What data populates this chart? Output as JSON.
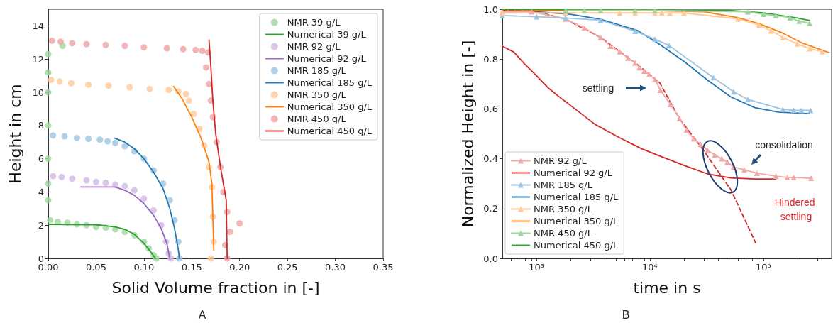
{
  "chart_data": [
    {
      "type": "scatter",
      "xlabel": "Solid Volume fraction in [-]",
      "ylabel": "Height in cm",
      "xlim": [
        0,
        0.35
      ],
      "ylim": [
        0,
        15
      ],
      "xticks": [
        {
          "value": 0,
          "label": "0.00"
        },
        {
          "value": 0.05,
          "label": "0.05"
        },
        {
          "value": 0.1,
          "label": "0.10"
        },
        {
          "value": 0.15,
          "label": "0.15"
        },
        {
          "value": 0.2,
          "label": "0.20"
        },
        {
          "value": 0.25,
          "label": "0.25"
        },
        {
          "value": 0.3,
          "label": "0.30"
        },
        {
          "value": 0.35,
          "label": "0.35"
        }
      ],
      "yticks": [
        0,
        2,
        4,
        6,
        8,
        10,
        12,
        14
      ],
      "legend": "top right",
      "annotations": [
        "A"
      ],
      "series": [
        {
          "name": "NMR 39 g/L",
          "marker": "circle",
          "color": "#9fd69f",
          "x": [
            0,
            0,
            0,
            0,
            0,
            0,
            0,
            0.015,
            0.002,
            0.01,
            0.02,
            0.03,
            0.04,
            0.05,
            0.06,
            0.07,
            0.08,
            0.09,
            0.1,
            0.105,
            0.11,
            0.113
          ],
          "values": [
            3.5,
            4.5,
            6,
            8,
            10,
            11.2,
            12.3,
            12.8,
            2.3,
            2.2,
            2.15,
            2.05,
            2,
            1.9,
            1.85,
            1.75,
            1.6,
            1.4,
            1,
            0.6,
            0.2,
            0
          ]
        },
        {
          "name": "Numerical 39 g/L",
          "type": "line",
          "marker": "none",
          "color": "#2ca02c",
          "x": [
            0,
            0.05,
            0.07,
            0.08,
            0.09,
            0.1,
            0.107,
            0.112
          ],
          "values": [
            2.05,
            2.03,
            1.9,
            1.75,
            1.45,
            0.9,
            0.4,
            0
          ]
        },
        {
          "name": "NMR 92 g/L",
          "marker": "circle",
          "color": "#cfb8e4",
          "x": [
            0.005,
            0.014,
            0.025,
            0.04,
            0.05,
            0.06,
            0.07,
            0.08,
            0.09,
            0.1,
            0.11,
            0.118,
            0.123,
            0.126,
            0.128
          ],
          "values": [
            4.95,
            4.9,
            4.8,
            4.7,
            4.6,
            4.55,
            4.45,
            4.35,
            4.1,
            3.6,
            2.9,
            2,
            1,
            0.3,
            0
          ]
        },
        {
          "name": "Numerical 92 g/L",
          "type": "line",
          "marker": "none",
          "color": "#9467bd",
          "x": [
            0.034,
            0.07,
            0.08,
            0.09,
            0.1,
            0.11,
            0.118,
            0.124,
            0.127
          ],
          "values": [
            4.3,
            4.3,
            4.1,
            3.8,
            3.3,
            2.6,
            1.8,
            0.9,
            0
          ]
        },
        {
          "name": "NMR 185 g/L",
          "marker": "circle",
          "color": "#9cc4e2",
          "x": [
            0.005,
            0.017,
            0.03,
            0.042,
            0.054,
            0.062,
            0.07,
            0.08,
            0.09,
            0.1,
            0.11,
            0.12,
            0.127,
            0.132,
            0.136,
            0.137
          ],
          "values": [
            7.4,
            7.35,
            7.25,
            7.2,
            7.15,
            7.05,
            6.95,
            6.75,
            6.45,
            6,
            5.3,
            4.5,
            3.5,
            2.3,
            1,
            0
          ]
        },
        {
          "name": "Numerical 185 g/L",
          "type": "line",
          "marker": "none",
          "color": "#1f77b4",
          "x": [
            0.069,
            0.08,
            0.09,
            0.1,
            0.11,
            0.12,
            0.127,
            0.132,
            0.136,
            0.137
          ],
          "values": [
            7.25,
            7,
            6.6,
            6,
            5.2,
            4.2,
            3,
            1.8,
            0.5,
            0
          ]
        },
        {
          "name": "NMR 350 g/L",
          "marker": "circle",
          "color": "#ffc999",
          "x": [
            0.003,
            0.012,
            0.024,
            0.042,
            0.063,
            0.085,
            0.106,
            0.126,
            0.136,
            0.144,
            0.147,
            0.152,
            0.158,
            0.163,
            0.168,
            0.171,
            0.172,
            0.173,
            0.17
          ],
          "values": [
            10.75,
            10.65,
            10.55,
            10.45,
            10.4,
            10.3,
            10.2,
            10.15,
            10.05,
            9.9,
            9.5,
            8.7,
            7.8,
            6.8,
            5.5,
            4.3,
            2.5,
            1,
            0
          ]
        },
        {
          "name": "Numerical 350 g/L",
          "type": "line",
          "marker": "none",
          "color": "#ff7f0e",
          "x": [
            0.131,
            0.14,
            0.15,
            0.16,
            0.168,
            0.171,
            0.172,
            0.173
          ],
          "values": [
            10.35,
            9.6,
            8.5,
            7.2,
            5.8,
            4.5,
            2.5,
            0.5
          ]
        },
        {
          "name": "NMR 450 g/L",
          "marker": "circle",
          "color": "#efa3a3",
          "x": [
            0.004,
            0.013,
            0.025,
            0.04,
            0.06,
            0.08,
            0.1,
            0.124,
            0.141,
            0.154,
            0.161,
            0.167,
            0.165,
            0.168,
            0.17,
            0.172,
            0.176,
            0.18,
            0.183,
            0.187,
            0.2,
            0.19,
            0.185,
            0.187
          ],
          "values": [
            13.1,
            13.05,
            12.95,
            12.9,
            12.85,
            12.8,
            12.7,
            12.65,
            12.6,
            12.55,
            12.5,
            12.4,
            11.5,
            10.5,
            9.5,
            8.5,
            7,
            5.5,
            4,
            2.8,
            2.1,
            1.6,
            0.8,
            0
          ]
        },
        {
          "name": "Numerical 450 g/L",
          "type": "line",
          "marker": "none",
          "color": "#d62728",
          "x": [
            0.168,
            0.17,
            0.172,
            0.175,
            0.18,
            0.186,
            0.187
          ],
          "values": [
            13.15,
            11.5,
            9.5,
            7.5,
            5.5,
            3.5,
            0
          ]
        }
      ]
    },
    {
      "type": "line",
      "xlabel": "time in s",
      "ylabel": "Normalized Height in [-]",
      "log": "x",
      "xlim": [
        500,
        400000
      ],
      "ylim": [
        0,
        1
      ],
      "xticks": [
        {
          "value": 600,
          "label": null
        },
        {
          "value": 700,
          "label": null
        },
        {
          "value": 800,
          "label": null
        },
        {
          "value": 900,
          "label": null
        },
        {
          "value": 1000,
          "label": "10³"
        },
        {
          "value": 2000,
          "label": null
        },
        {
          "value": 3000,
          "label": null
        },
        {
          "value": 4000,
          "label": null
        },
        {
          "value": 5000,
          "label": null
        },
        {
          "value": 6000,
          "label": null
        },
        {
          "value": 7000,
          "label": null
        },
        {
          "value": 8000,
          "label": null
        },
        {
          "value": 9000,
          "label": null
        },
        {
          "value": 10000,
          "label": "10⁴"
        },
        {
          "value": 20000,
          "label": null
        },
        {
          "value": 30000,
          "label": null
        },
        {
          "value": 40000,
          "label": null
        },
        {
          "value": 50000,
          "label": null
        },
        {
          "value": 60000,
          "label": null
        },
        {
          "value": 70000,
          "label": null
        },
        {
          "value": 80000,
          "label": null
        },
        {
          "value": 90000,
          "label": null
        },
        {
          "value": 100000,
          "label": "10⁵"
        },
        {
          "value": 200000,
          "label": null
        },
        {
          "value": 300000,
          "label": null
        }
      ],
      "yticks": [
        {
          "value": 0,
          "label": "0.0"
        },
        {
          "value": 0.2,
          "label": "0.2"
        },
        {
          "value": 0.4,
          "label": "0.4"
        },
        {
          "value": 0.6,
          "label": "0.6"
        },
        {
          "value": 0.8,
          "label": "0.8"
        },
        {
          "value": 1,
          "label": "1.0"
        }
      ],
      "legend": "bottom left",
      "annotations": [
        "settling",
        "consolidation",
        "Hindered settling",
        "B"
      ],
      "series": [
        {
          "name": "NMR 92 g/L",
          "marker": "triangle",
          "color": "#f0a8a8",
          "x": [
            500,
            905,
            1800,
            2640,
            3670,
            4490,
            5410,
            6420,
            7410,
            8070,
            8910,
            9860,
            11050,
            12390,
            15140,
            18230,
            21040,
            24270,
            28000,
            32300,
            37250,
            43000,
            48200,
            54800,
            67900,
            87900,
            129000,
            162600,
            185000,
            264000
          ],
          "values": [
            0.99,
            0.99,
            0.961,
            0.925,
            0.887,
            0.852,
            0.83,
            0.804,
            0.785,
            0.766,
            0.752,
            0.738,
            0.719,
            0.675,
            0.618,
            0.561,
            0.515,
            0.481,
            0.458,
            0.434,
            0.416,
            0.4,
            0.387,
            0.367,
            0.356,
            0.342,
            0.33,
            0.325,
            0.325,
            0.322
          ]
        },
        {
          "name": "Numerical 92 g/L",
          "marker": "none",
          "color": "#d62728",
          "x": [
            500,
            632,
            783,
            1000,
            1257,
            1600,
            2047,
            3280,
            5250,
            8550,
            12400,
            20100,
            32300,
            51700,
            84100,
            129000
          ],
          "values": [
            0.852,
            0.828,
            0.781,
            0.733,
            0.686,
            0.647,
            0.61,
            0.538,
            0.487,
            0.439,
            0.41,
            0.373,
            0.339,
            0.323,
            0.319,
            0.319
          ]
        },
        {
          "name": "NMR 185 g/L",
          "marker": "triangle",
          "color": "#9cc4e2",
          "x": [
            500,
            1000,
            1800,
            3670,
            7410,
            11050,
            14700,
            36200,
            54800,
            72900,
            149000,
            185000,
            216000,
            261000
          ],
          "values": [
            0.975,
            0.97,
            0.965,
            0.956,
            0.912,
            0.88,
            0.855,
            0.726,
            0.669,
            0.638,
            0.598,
            0.595,
            0.594,
            0.594
          ]
        },
        {
          "name": "Numerical 185 g/L",
          "marker": "none",
          "color": "#1f77b4",
          "x": [
            500,
            1000,
            2000,
            3670,
            7730,
            12400,
            20100,
            32300,
            51700,
            84100,
            135000,
            256000
          ],
          "values": [
            0.99,
            0.99,
            0.98,
            0.96,
            0.915,
            0.857,
            0.79,
            0.715,
            0.648,
            0.605,
            0.587,
            0.581
          ]
        },
        {
          "name": "NMR 350 g/L",
          "marker": "triangle",
          "color": "#ffc999",
          "x": [
            500,
            1800,
            5410,
            7410,
            11050,
            12700,
            15000,
            20000,
            59700,
            91800,
            117000,
            149000,
            198600,
            256000,
            331000
          ],
          "values": [
            0.985,
            0.985,
            0.985,
            0.985,
            0.985,
            0.985,
            0.985,
            0.985,
            0.961,
            0.937,
            0.913,
            0.887,
            0.861,
            0.842,
            0.83
          ]
        },
        {
          "name": "Numerical 350 g/L",
          "marker": "none",
          "color": "#ff7f0e",
          "x": [
            500,
            10000,
            30000,
            59700,
            91800,
            149000,
            216000,
            380000
          ],
          "values": [
            0.995,
            0.995,
            0.99,
            0.966,
            0.942,
            0.904,
            0.866,
            0.826
          ]
        },
        {
          "name": "NMR 450 g/L",
          "marker": "triangle",
          "color": "#9fd69f",
          "x": [
            1800,
            2640,
            3670,
            7410,
            11050,
            72900,
            100000,
            129000,
            172000,
            207000,
            256000
          ],
          "values": [
            0.995,
            0.995,
            0.995,
            0.995,
            0.995,
            0.99,
            0.98,
            0.975,
            0.966,
            0.952,
            0.944
          ]
        },
        {
          "name": "Numerical 450 g/L",
          "marker": "none",
          "color": "#2ca02c",
          "x": [
            500,
            50000,
            100000,
            200000,
            256000
          ],
          "values": [
            1,
            0.995,
            0.985,
            0.965,
            0.955
          ]
        },
        {
          "marker": "none",
          "line_style": "dashed",
          "color": "#d62728",
          "x": [
            500,
            1000,
            1800,
            3670,
            7410,
            12200,
            18230,
            28000,
            51700,
            85400
          ],
          "values": [
            0.995,
            0.99,
            0.96,
            0.887,
            0.785,
            0.705,
            0.561,
            0.45,
            0.276,
            0.063
          ]
        }
      ]
    }
  ]
}
